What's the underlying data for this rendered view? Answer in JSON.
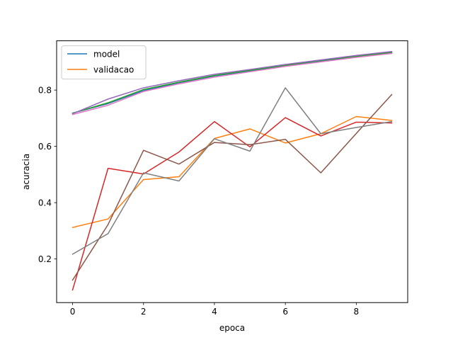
{
  "chart_data": {
    "type": "line",
    "xlabel": "epoca",
    "ylabel": "acuracia",
    "xlim": [
      -0.45,
      9.45
    ],
    "ylim": [
      0.045,
      0.975
    ],
    "x": [
      0,
      1,
      2,
      3,
      4,
      5,
      6,
      7,
      8,
      9
    ],
    "xticks": [
      0,
      2,
      4,
      6,
      8
    ],
    "yticks": [
      0.2,
      0.4,
      0.6,
      0.8
    ],
    "grid": false,
    "legend_position": "top-left",
    "legend": [
      "model",
      "validacao"
    ],
    "series": [
      {
        "name": "model",
        "color": "#1f77b4",
        "values": [
          0.718,
          0.752,
          0.798,
          0.826,
          0.85,
          0.868,
          0.887,
          0.903,
          0.918,
          0.933
        ]
      },
      {
        "name": "validacao",
        "color": "#ff7f0e",
        "values": [
          0.312,
          0.342,
          0.482,
          0.492,
          0.628,
          0.662,
          0.612,
          0.645,
          0.706,
          0.692
        ]
      },
      {
        "color": "#2ca02c",
        "values": [
          0.718,
          0.755,
          0.802,
          0.828,
          0.852,
          0.87,
          0.888,
          0.905,
          0.92,
          0.934
        ]
      },
      {
        "color": "#d62728",
        "values": [
          0.09,
          0.522,
          0.502,
          0.58,
          0.688,
          0.598,
          0.702,
          0.637,
          0.686,
          0.683
        ]
      },
      {
        "color": "#9467bd",
        "values": [
          0.716,
          0.768,
          0.808,
          0.833,
          0.856,
          0.873,
          0.891,
          0.907,
          0.923,
          0.937
        ]
      },
      {
        "color": "#8c564b",
        "values": [
          0.125,
          0.322,
          0.586,
          0.537,
          0.614,
          0.606,
          0.625,
          0.506,
          0.646,
          0.784
        ]
      },
      {
        "color": "#e377c2",
        "values": [
          0.713,
          0.746,
          0.795,
          0.822,
          0.846,
          0.865,
          0.884,
          0.9,
          0.916,
          0.93
        ]
      },
      {
        "color": "#7f7f7f",
        "values": [
          0.217,
          0.29,
          0.506,
          0.477,
          0.627,
          0.583,
          0.808,
          0.645,
          0.667,
          0.688
        ]
      }
    ]
  }
}
